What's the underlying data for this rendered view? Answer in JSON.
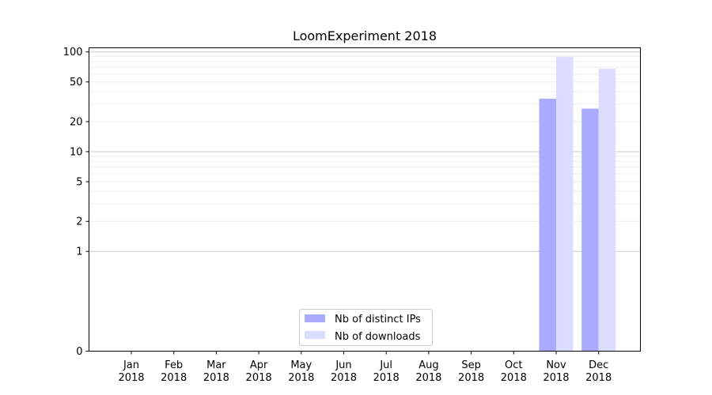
{
  "chart_data": {
    "type": "bar",
    "title": "LoomExperiment 2018",
    "xlabel": "",
    "ylabel": "",
    "scale": "symlog",
    "categories": [
      [
        "Jan",
        "2018"
      ],
      [
        "Feb",
        "2018"
      ],
      [
        "Mar",
        "2018"
      ],
      [
        "Apr",
        "2018"
      ],
      [
        "May",
        "2018"
      ],
      [
        "Jun",
        "2018"
      ],
      [
        "Jul",
        "2018"
      ],
      [
        "Aug",
        "2018"
      ],
      [
        "Sep",
        "2018"
      ],
      [
        "Oct",
        "2018"
      ],
      [
        "Nov",
        "2018"
      ],
      [
        "Dec",
        "2018"
      ]
    ],
    "yticks": [
      "0",
      "1",
      "2",
      "5",
      "10",
      "20",
      "50",
      "100"
    ],
    "ylim": [
      0,
      110
    ],
    "grid": true,
    "legend_position": "bottom-center",
    "series": [
      {
        "name": "Nb of distinct IPs",
        "color": "#aaaaff",
        "values": [
          0,
          0,
          0,
          0,
          0,
          0,
          0,
          0,
          0,
          0,
          34,
          27
        ]
      },
      {
        "name": "Nb of downloads",
        "color": "#ddddff",
        "values": [
          0,
          0,
          0,
          0,
          0,
          0,
          0,
          0,
          0,
          0,
          89,
          68
        ]
      }
    ]
  }
}
